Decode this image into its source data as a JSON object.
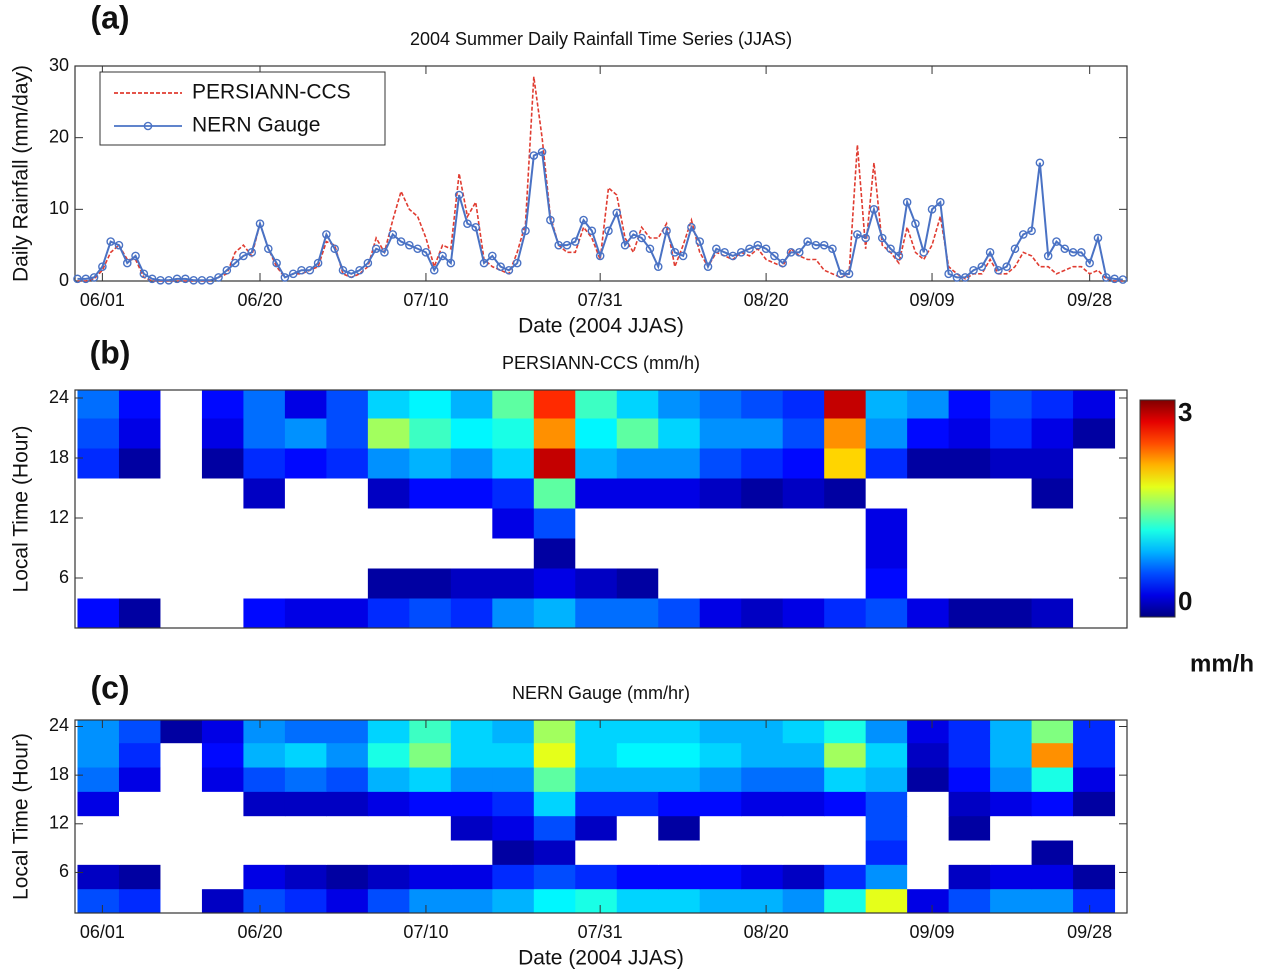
{
  "chart_data": [
    {
      "type": "line",
      "panel_label": "(a)",
      "title": "2004 Summer Daily Rainfall Time Series (JJAS)",
      "x_label": "Date (2004 JJAS)",
      "y_label": "Daily Rainfall (mm/day)",
      "x": [
        -3,
        -2,
        -1,
        0,
        1,
        2,
        3,
        4,
        5,
        6,
        7,
        8,
        9,
        10,
        11,
        12,
        13,
        14,
        15,
        16,
        17,
        18,
        19,
        20,
        21,
        22,
        23,
        24,
        25,
        26,
        27,
        28,
        29,
        30,
        31,
        32,
        33,
        34,
        35,
        36,
        37,
        38,
        39,
        40,
        41,
        42,
        43,
        44,
        45,
        46,
        47,
        48,
        49,
        50,
        51,
        52,
        53,
        54,
        55,
        56,
        57,
        58,
        59,
        60,
        61,
        62,
        63,
        64,
        65,
        66,
        67,
        68,
        69,
        70,
        71,
        72,
        73,
        74,
        75,
        76,
        77,
        78,
        79,
        80,
        81,
        82,
        83,
        84,
        85,
        86,
        87,
        88,
        89,
        90,
        91,
        92,
        93,
        94,
        95,
        96,
        97,
        98,
        99,
        100,
        101,
        102,
        103,
        104,
        105,
        106,
        107,
        108,
        109,
        110,
        111,
        112,
        113,
        114,
        115,
        116,
        117,
        118,
        119,
        120,
        121,
        122,
        123
      ],
      "series": [
        {
          "name": "PERSIANN-CCS",
          "color": "#e03c31",
          "line_style": "dashed",
          "marker": "none",
          "values": [
            0,
            0,
            0.3,
            1.5,
            4,
            5,
            3,
            3,
            0.5,
            0,
            0,
            0,
            0,
            0,
            0,
            0,
            0,
            0.5,
            1,
            4,
            5,
            3.5,
            8,
            4.5,
            2,
            0.5,
            1,
            1,
            1.5,
            2,
            5.5,
            5,
            1,
            0.5,
            1,
            2,
            6,
            4,
            8.5,
            12.5,
            10,
            9,
            6,
            2,
            5,
            4.5,
            15,
            9,
            11,
            3,
            2,
            1.5,
            1,
            4,
            8,
            28.5,
            20,
            9,
            5,
            4,
            4,
            7.5,
            6,
            3,
            13,
            12,
            6,
            4,
            7.5,
            6,
            6,
            8,
            2,
            5,
            8.5,
            4,
            2,
            4,
            3.5,
            3,
            4,
            3.5,
            4.5,
            3,
            2.5,
            2,
            4.5,
            3.5,
            3,
            3,
            1.5,
            1,
            0.5,
            1,
            19,
            4.5,
            16.5,
            5,
            4,
            2.5,
            7.5,
            4,
            3,
            5,
            9,
            2,
            1,
            0.3,
            1,
            1,
            3,
            1,
            1,
            2,
            4,
            3.5,
            2,
            2,
            1,
            1.5,
            2,
            2,
            1,
            1.5,
            0.3,
            0,
            0
          ]
        },
        {
          "name": "NERN Gauge",
          "color": "#4a72c4",
          "line_style": "solid",
          "marker": "circle",
          "values": [
            0.3,
            0.3,
            0.5,
            2,
            5.5,
            5,
            2.5,
            3.5,
            1,
            0.3,
            0.1,
            0.1,
            0.3,
            0.3,
            0.1,
            0.1,
            0.1,
            0.5,
            1.5,
            2.5,
            3.5,
            4,
            8,
            4.5,
            2.5,
            0.5,
            1,
            1.5,
            1.5,
            2.5,
            6.5,
            4.5,
            1.5,
            1,
            1.5,
            2.5,
            4.5,
            4,
            6.5,
            5.5,
            5,
            4.5,
            4,
            1.5,
            3.5,
            2.5,
            12,
            8,
            7.5,
            2.5,
            3.5,
            2,
            1.5,
            2.5,
            7,
            17.5,
            18,
            8.5,
            5,
            5,
            5.5,
            8.5,
            7,
            3.5,
            7,
            9.5,
            5,
            6.5,
            6,
            4.5,
            2,
            7,
            4,
            3.5,
            7.5,
            5.5,
            2,
            4.5,
            4,
            3.5,
            4,
            4.5,
            5,
            4.5,
            3.5,
            2.5,
            4,
            4,
            5.5,
            5,
            5,
            4.5,
            1,
            1,
            6.5,
            6,
            10,
            6,
            4.5,
            3.5,
            11,
            8,
            4,
            10,
            11,
            1,
            0.5,
            0.5,
            1.5,
            2,
            4,
            1.5,
            2,
            4.5,
            6.5,
            7,
            16.5,
            3.5,
            5.5,
            4.5,
            4,
            4,
            2.5,
            6,
            0.5,
            0.3,
            0.2
          ]
        }
      ],
      "xlim": [
        -3.3,
        123.5
      ],
      "xticks": [
        {
          "value": 0,
          "label": "06/01"
        },
        {
          "value": 19,
          "label": "06/20"
        },
        {
          "value": 39,
          "label": "07/10"
        },
        {
          "value": 60,
          "label": "07/31"
        },
        {
          "value": 80,
          "label": "08/20"
        },
        {
          "value": 100,
          "label": "09/09"
        },
        {
          "value": 119,
          "label": "09/28"
        }
      ],
      "ylim": [
        0,
        30
      ],
      "yticks": [
        0,
        10,
        20,
        30
      ],
      "legend": "upper left"
    },
    {
      "type": "heatmap",
      "panel_label": "(b)",
      "title": "PERSIANN-CCS (mm/h)",
      "y_label": "Local Time (Hour)",
      "x_bins": [
        -3,
        2,
        7,
        12,
        17,
        22,
        27,
        32,
        37,
        42,
        47,
        52,
        57,
        62,
        67,
        72,
        77,
        82,
        87,
        92,
        97,
        102,
        107,
        112,
        117,
        122
      ],
      "y_bins": [
        1,
        4,
        7,
        10,
        13,
        16,
        19,
        22,
        24.8
      ],
      "z": [
        [
          0.4,
          0.1,
          0,
          0,
          0.4,
          0.3,
          0.3,
          0.5,
          0.6,
          0.5,
          0.8,
          0.9,
          0.7,
          0.7,
          0.6,
          0.3,
          0.2,
          0.3,
          0.5,
          0.6,
          0.3,
          0.1,
          0.1,
          0.2,
          0
        ],
        [
          0,
          0,
          0,
          0,
          0,
          0,
          0,
          0.1,
          0.1,
          0.2,
          0.2,
          0.3,
          0.2,
          0.1,
          0,
          0,
          0,
          0,
          0,
          0.4,
          0,
          0,
          0,
          0,
          0
        ],
        [
          0,
          0,
          0,
          0,
          0,
          0,
          0,
          0,
          0,
          0,
          0,
          0.1,
          0,
          0,
          0,
          0,
          0,
          0,
          0,
          0.3,
          0,
          0,
          0,
          0,
          0
        ],
        [
          0,
          0,
          0,
          0,
          0,
          0,
          0,
          0,
          0,
          0,
          0.3,
          0.6,
          0,
          0,
          0,
          0,
          0,
          0,
          0,
          0.3,
          0,
          0,
          0,
          0,
          0
        ],
        [
          0,
          0,
          0,
          0,
          0.2,
          0,
          0,
          0.2,
          0.4,
          0.4,
          0.5,
          1.4,
          0.3,
          0.3,
          0.3,
          0.2,
          0.1,
          0.2,
          0.1,
          0,
          0,
          0,
          0,
          0.1,
          0
        ],
        [
          0.5,
          0.1,
          0,
          0.1,
          0.5,
          0.4,
          0.5,
          0.8,
          0.9,
          0.8,
          1.0,
          2.8,
          0.9,
          0.8,
          0.8,
          0.6,
          0.5,
          0.4,
          2.0,
          0.5,
          0.1,
          0.1,
          0.2,
          0.2,
          0
        ],
        [
          0.6,
          0.3,
          0,
          0.3,
          0.7,
          0.8,
          0.6,
          1.6,
          1.3,
          1.1,
          1.2,
          2.2,
          1.1,
          1.4,
          1.0,
          0.8,
          0.8,
          0.6,
          2.2,
          0.8,
          0.4,
          0.3,
          0.5,
          0.3,
          0.1
        ],
        [
          0.7,
          0.4,
          0,
          0.4,
          0.7,
          0.3,
          0.6,
          1.0,
          1.1,
          0.9,
          1.4,
          2.5,
          1.3,
          1.0,
          0.8,
          0.7,
          0.6,
          0.5,
          2.8,
          0.9,
          0.8,
          0.4,
          0.6,
          0.5,
          0.3
        ]
      ],
      "xlim": [
        -3.3,
        123.5
      ],
      "ylim": [
        1,
        24.8
      ],
      "yticks": [
        6,
        12,
        18,
        24
      ],
      "colorbar": {
        "lim": [
          0,
          3
        ],
        "ticks": [
          0,
          3
        ],
        "label": "mm/h"
      }
    },
    {
      "type": "heatmap",
      "panel_label": "(c)",
      "title": "NERN Gauge (mm/hr)",
      "y_label": "Local Time (Hour)",
      "x_label": "Date (2004 JJAS)",
      "x_bins": [
        -3,
        2,
        7,
        12,
        17,
        22,
        27,
        32,
        37,
        42,
        47,
        52,
        57,
        62,
        67,
        72,
        77,
        82,
        87,
        92,
        97,
        102,
        107,
        112,
        117,
        122
      ],
      "y_bins": [
        1,
        4,
        7,
        10,
        13,
        16,
        19,
        22,
        24.8
      ],
      "z": [
        [
          0.6,
          0.5,
          0,
          0.2,
          0.6,
          0.5,
          0.3,
          0.6,
          0.8,
          0.8,
          0.9,
          1.1,
          1.2,
          1.0,
          1.0,
          0.9,
          0.9,
          0.8,
          1.2,
          1.8,
          0.3,
          0.6,
          0.8,
          0.8,
          0.5
        ],
        [
          0.2,
          0.1,
          0,
          0,
          0.3,
          0.2,
          0.1,
          0.2,
          0.3,
          0.3,
          0.5,
          0.6,
          0.5,
          0.4,
          0.4,
          0.4,
          0.3,
          0.2,
          0.5,
          0.8,
          0,
          0.2,
          0.3,
          0.3,
          0.1
        ],
        [
          0,
          0,
          0,
          0,
          0,
          0,
          0,
          0,
          0,
          0,
          0.1,
          0.2,
          0,
          0,
          0,
          0,
          0,
          0,
          0,
          0.5,
          0,
          0,
          0,
          0.1,
          0
        ],
        [
          0,
          0,
          0,
          0,
          0,
          0,
          0,
          0,
          0,
          0.2,
          0.3,
          0.6,
          0.2,
          0,
          0.1,
          0,
          0,
          0,
          0,
          0.6,
          0,
          0.1,
          0,
          0,
          0
        ],
        [
          0.3,
          0,
          0,
          0,
          0.2,
          0.2,
          0.2,
          0.3,
          0.4,
          0.4,
          0.5,
          1.0,
          0.5,
          0.5,
          0.4,
          0.4,
          0.3,
          0.3,
          0.4,
          0.6,
          0,
          0.2,
          0.3,
          0.4,
          0.1
        ],
        [
          0.7,
          0.3,
          0,
          0.3,
          0.6,
          0.7,
          0.6,
          0.9,
          1.0,
          0.8,
          0.8,
          1.4,
          0.9,
          0.9,
          0.9,
          0.8,
          0.7,
          0.7,
          1.0,
          0.9,
          0.1,
          0.4,
          0.8,
          1.2,
          0.3
        ],
        [
          0.8,
          0.5,
          0,
          0.4,
          0.9,
          1.0,
          0.8,
          1.2,
          1.5,
          1.0,
          1.0,
          1.8,
          1.0,
          1.1,
          1.1,
          1.0,
          0.9,
          0.9,
          1.6,
          1.0,
          0.2,
          0.5,
          0.9,
          2.2,
          0.5
        ],
        [
          0.8,
          0.6,
          0.1,
          0.3,
          0.8,
          0.7,
          0.7,
          1.0,
          1.3,
          1.0,
          0.9,
          1.6,
          1.0,
          1.0,
          1.0,
          0.9,
          0.9,
          1.0,
          1.2,
          0.8,
          0.3,
          0.5,
          0.9,
          1.5,
          0.5
        ]
      ],
      "xlim": [
        -3.3,
        123.5
      ],
      "xticks": [
        {
          "value": 0,
          "label": "06/01"
        },
        {
          "value": 19,
          "label": "06/20"
        },
        {
          "value": 39,
          "label": "07/10"
        },
        {
          "value": 60,
          "label": "07/31"
        },
        {
          "value": 80,
          "label": "08/20"
        },
        {
          "value": 100,
          "label": "09/09"
        },
        {
          "value": 119,
          "label": "09/28"
        }
      ],
      "ylim": [
        1,
        24.8
      ],
      "yticks": [
        6,
        12,
        18,
        24
      ],
      "color_max": 3
    }
  ]
}
